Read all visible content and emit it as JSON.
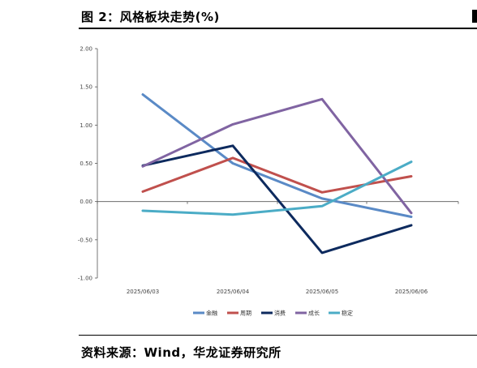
{
  "title": "图 2：风格板块走势(%)",
  "source": "资料来源：Wind，华龙证券研究所",
  "chart_data": {
    "type": "line",
    "x": [
      "2025/06/03",
      "2025/06/04",
      "2025/06/05",
      "2025/06/06"
    ],
    "ylim": [
      -1.0,
      2.0
    ],
    "yticks": [
      "2.00",
      "1.50",
      "1.00",
      "0.50",
      "0.00",
      "-0.50",
      "-1.00"
    ],
    "ytick_values": [
      2.0,
      1.5,
      1.0,
      0.5,
      0.0,
      -0.5,
      -1.0
    ],
    "legend_position": "bottom",
    "grid": false,
    "series": [
      {
        "name": "金融",
        "color": "#5a8ac6",
        "values": [
          1.4,
          0.5,
          0.04,
          -0.2
        ]
      },
      {
        "name": "周期",
        "color": "#c0504d",
        "values": [
          0.13,
          0.57,
          0.12,
          0.33
        ]
      },
      {
        "name": "消费",
        "color": "#0d2a5e",
        "values": [
          0.47,
          0.73,
          -0.67,
          -0.31
        ]
      },
      {
        "name": "成长",
        "color": "#8064a2",
        "values": [
          0.46,
          1.01,
          1.34,
          -0.15
        ]
      },
      {
        "name": "稳定",
        "color": "#4bacc6",
        "values": [
          -0.12,
          -0.17,
          -0.06,
          0.52
        ]
      }
    ]
  }
}
